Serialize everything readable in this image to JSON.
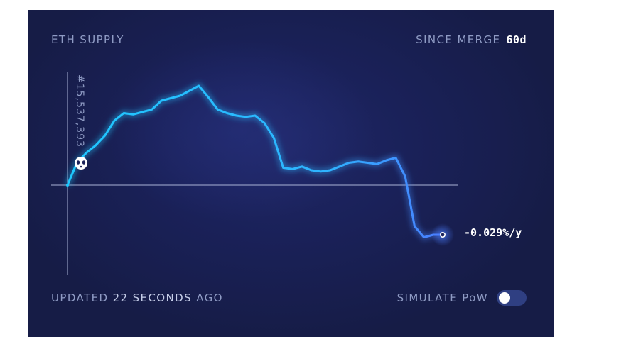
{
  "header": {
    "title": "ETH SUPPLY",
    "since_label": "SINCE MERGE",
    "since_value": "60d"
  },
  "footer": {
    "updated_prefix": "UPDATED",
    "updated_value": "22 SECONDS",
    "updated_suffix": "AGO",
    "simulate_label": "SIMULATE PoW",
    "simulate_on": false
  },
  "colors": {
    "background": "#1a2159",
    "line_start": "#1ec8ff",
    "line_end": "#4a7dff",
    "text_muted": "#8f9bc4"
  },
  "chart_data": {
    "type": "line",
    "title": "ETH SUPPLY",
    "y_axis_label": "#15,537,393",
    "rate_label": "-0.029%/y",
    "grid": false,
    "baseline": 0,
    "x": [
      0,
      1.5,
      3,
      4.5,
      6,
      7.5,
      9,
      10.5,
      12,
      13.5,
      15,
      16.5,
      18,
      19.5,
      21,
      22.5,
      24,
      25.5,
      27,
      28.5,
      30,
      31.5,
      33,
      34.5,
      36,
      37.5,
      39,
      40.5,
      42,
      43.5,
      45,
      46.5,
      48,
      49.5,
      51,
      52.5,
      54,
      55.5,
      57,
      58.5,
      60
    ],
    "y": [
      0,
      18,
      26,
      32,
      40,
      52,
      58,
      57,
      59,
      61,
      68,
      70,
      72,
      76,
      80,
      71,
      61,
      58,
      56,
      55,
      56,
      50,
      38,
      14,
      13,
      15,
      12,
      11,
      12,
      15,
      18,
      19,
      18,
      17,
      20,
      22,
      7,
      -33,
      -42,
      -40,
      -40
    ],
    "y_unit": "relative supply change (arbitrary)",
    "ylim": [
      -75,
      100
    ]
  }
}
